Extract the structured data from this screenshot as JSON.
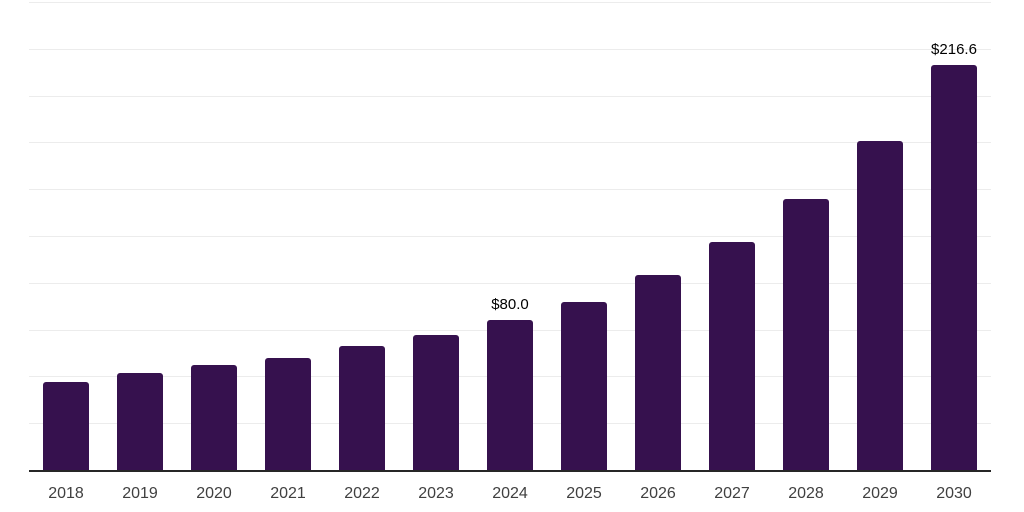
{
  "chart_data": {
    "type": "bar",
    "title": "",
    "xlabel": "",
    "ylabel": "",
    "categories": [
      "2018",
      "2019",
      "2020",
      "2021",
      "2022",
      "2023",
      "2024",
      "2025",
      "2026",
      "2027",
      "2028",
      "2029",
      "2030"
    ],
    "values": [
      47,
      52,
      56,
      60,
      66,
      72,
      80.0,
      90,
      104,
      122,
      145,
      176,
      216.6
    ],
    "data_labels": [
      "",
      "",
      "",
      "",
      "",
      "",
      "$80.0",
      "",
      "",
      "",
      "",
      "",
      "$216.6"
    ],
    "ylim": [
      0,
      250
    ],
    "gridline_step": 25,
    "grid": true,
    "legend": false,
    "bar_color": "#36114e",
    "gridline_color": "#ececec",
    "axis_line_color": "#262626",
    "tick_label_color": "#404040",
    "data_label_color": "#000000"
  }
}
